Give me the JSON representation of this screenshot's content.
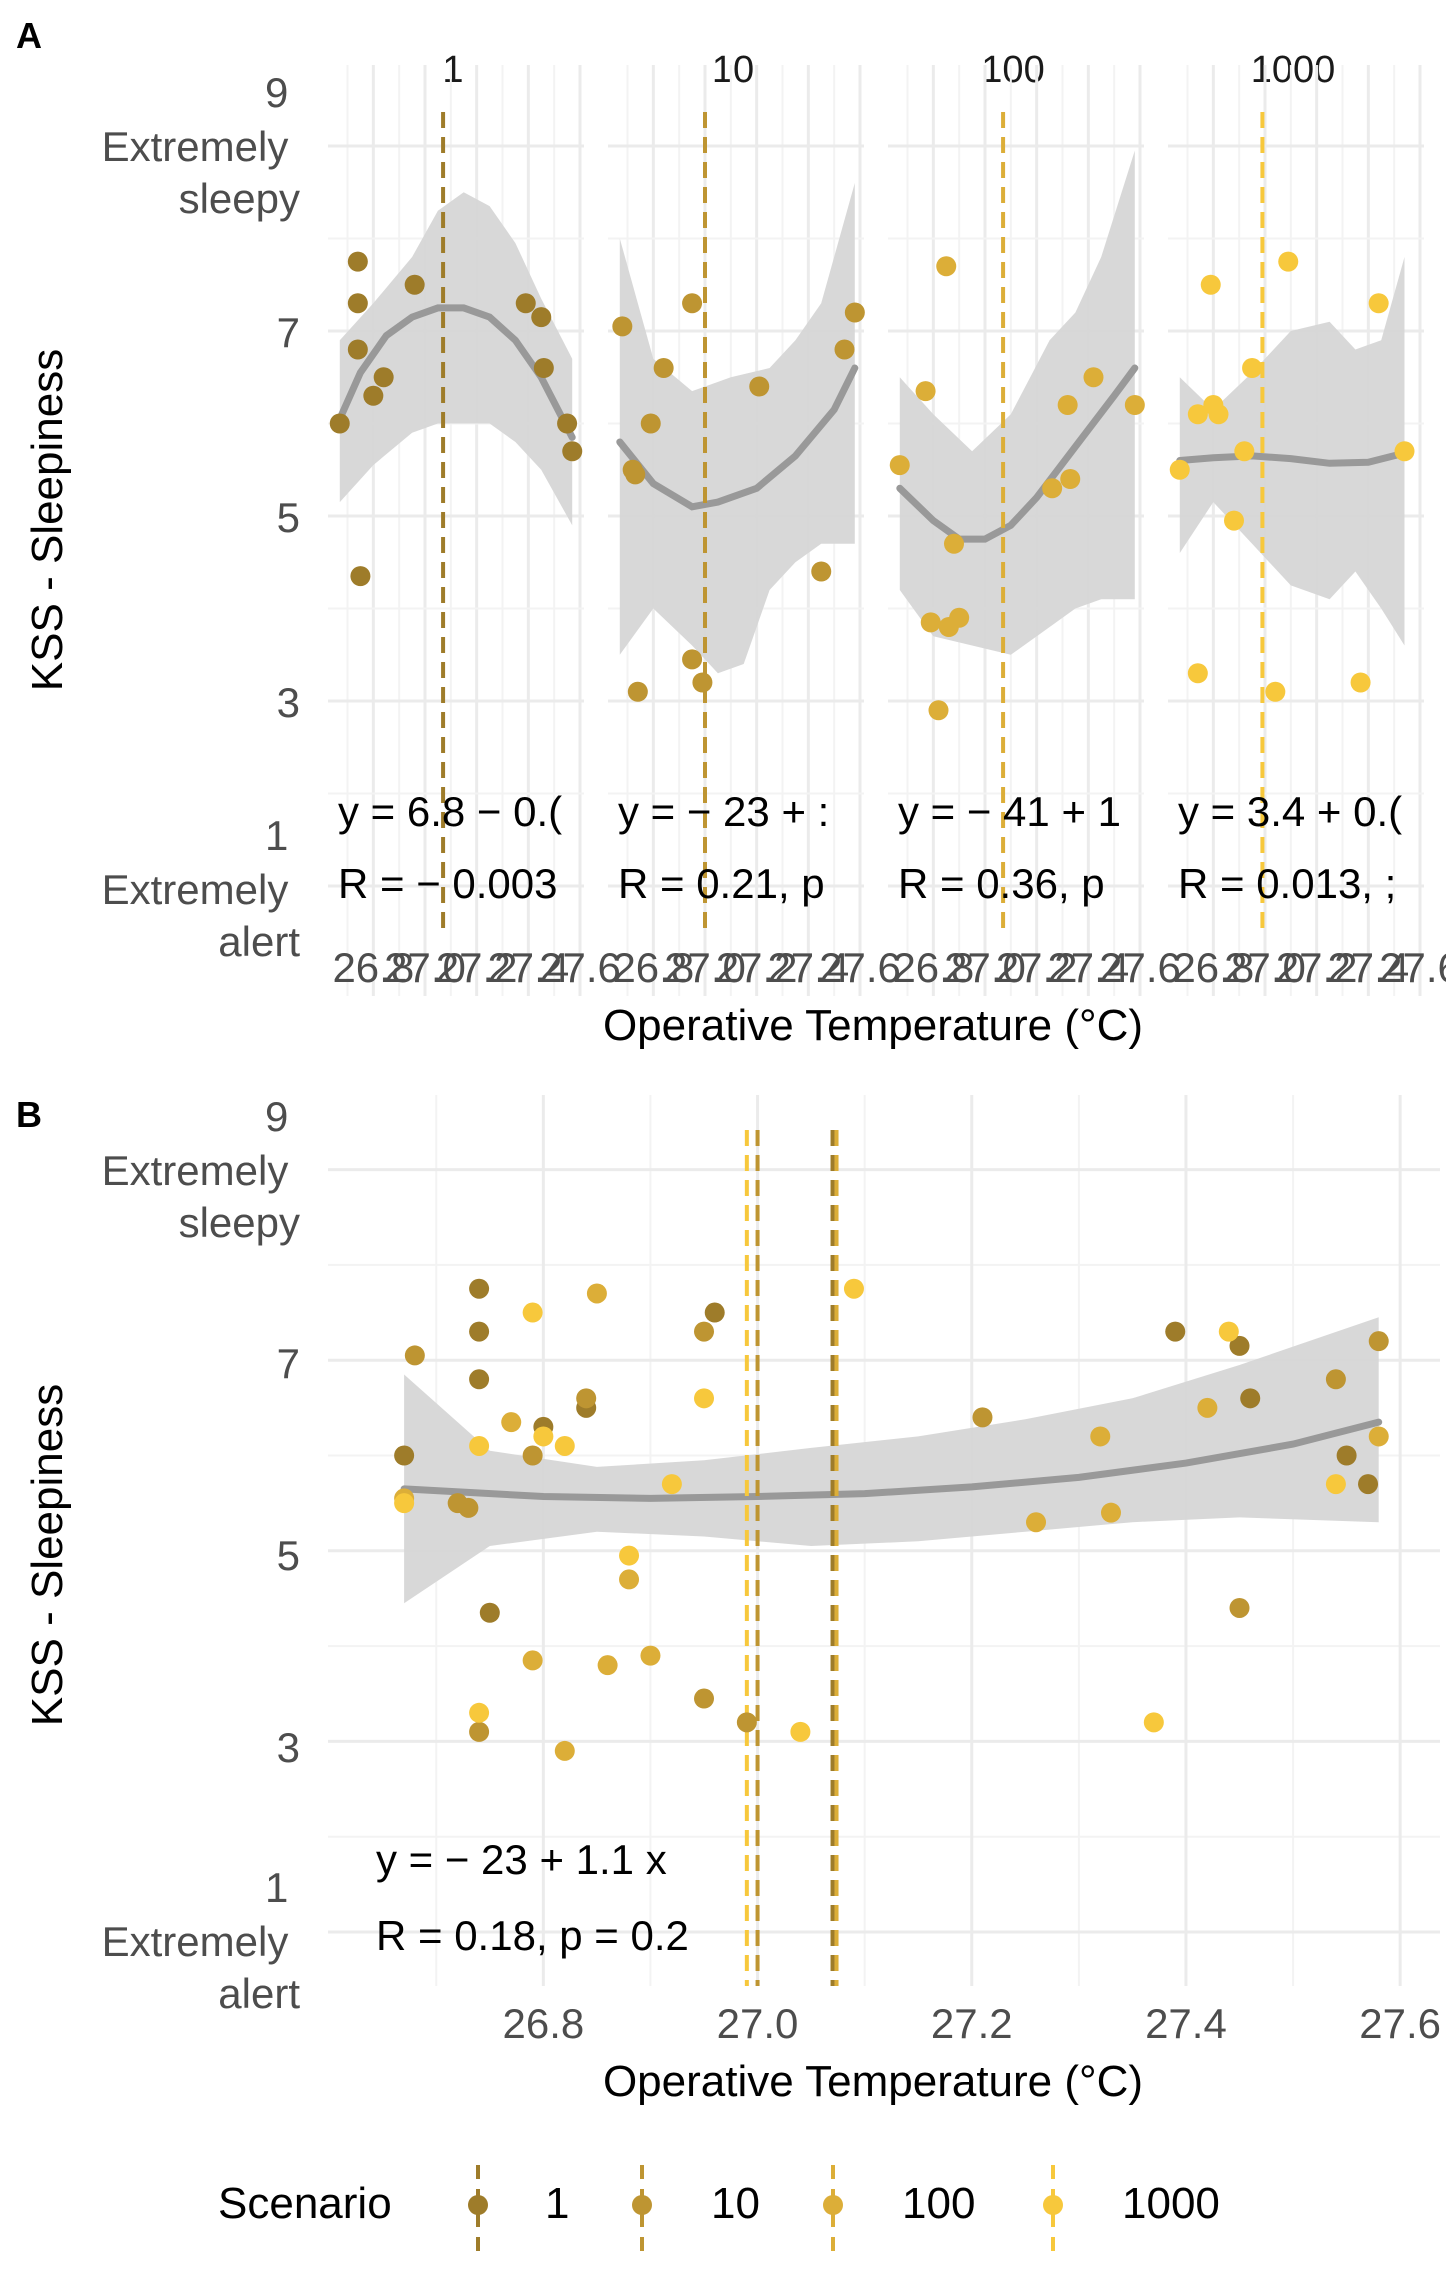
{
  "figure": {
    "panels": [
      "A",
      "B"
    ],
    "ylabel": "KSS - Sleepiness",
    "xlabel": "Operative Temperature (°C)",
    "y_tick_labels": [
      "1\nExtremely\nalert",
      "3",
      "5",
      "7",
      "9\nExtremely\nsleepy"
    ],
    "facet_x_tick_labels": [
      "26.8",
      "27.0",
      "27.2",
      "27.4",
      "27.6"
    ],
    "facet_strip_labels": [
      "1",
      "10",
      "100",
      "1000"
    ],
    "facet_equations": [
      "y = 6.8 − 0.(",
      "y = − 23 + :",
      "y = − 41 + 1",
      "y = 3.4 + 0.("
    ],
    "facet_correlations": [
      "R = − 0.003",
      "R = 0.21, p",
      "R = 0.36, p",
      "R = 0.013, ;"
    ],
    "pooled_equation": "y = − 23 + 1.1 x",
    "pooled_correlation": "R = 0.18, p = 0.2",
    "legend_title": "Scenario",
    "legend_items": [
      "1",
      "10",
      "100",
      "1000"
    ]
  },
  "colors": {
    "1": "#9E7C2A",
    "10": "#BE9532",
    "100": "#DCAE38",
    "1000": "#F7C83C",
    "smooth_line": "#999999",
    "ribbon": "#d6d6d6",
    "grid": "#ebebeb"
  },
  "chart_data": [
    {
      "type": "scatter",
      "panel": "A",
      "facets": [
        "1",
        "10",
        "100",
        "1000"
      ],
      "xlabel": "Operative Temperature (°C)",
      "ylabel": "KSS - Sleepiness",
      "xlim": [
        26.64,
        27.6
      ],
      "ylim": [
        1,
        9
      ],
      "x_ticks": [
        26.8,
        27.0,
        27.2,
        27.4,
        27.6
      ],
      "y_ticks": [
        1,
        3,
        5,
        7,
        9
      ],
      "trend": "loess smooth with confidence ribbon; dashed vertical line at mean temperature per scenario",
      "series": [
        {
          "name": "1",
          "mean_x": 27.07,
          "points": [
            [
              26.67,
              6.0
            ],
            [
              26.74,
              7.75
            ],
            [
              26.74,
              7.3
            ],
            [
              26.74,
              6.8
            ],
            [
              26.75,
              4.35
            ],
            [
              26.8,
              6.3
            ],
            [
              26.84,
              6.5
            ],
            [
              26.96,
              7.5
            ],
            [
              27.39,
              7.3
            ],
            [
              27.45,
              7.15
            ],
            [
              27.46,
              6.6
            ],
            [
              27.55,
              6.0
            ],
            [
              27.57,
              5.7
            ]
          ],
          "smooth": [
            [
              26.67,
              6.05
            ],
            [
              26.75,
              6.55
            ],
            [
              26.85,
              6.95
            ],
            [
              26.95,
              7.15
            ],
            [
              27.05,
              7.25
            ],
            [
              27.15,
              7.25
            ],
            [
              27.25,
              7.15
            ],
            [
              27.35,
              6.9
            ],
            [
              27.45,
              6.5
            ],
            [
              27.57,
              5.85
            ]
          ],
          "ribbon_upper": [
            [
              26.67,
              6.9
            ],
            [
              26.8,
              7.3
            ],
            [
              26.95,
              7.8
            ],
            [
              27.05,
              8.3
            ],
            [
              27.15,
              8.5
            ],
            [
              27.25,
              8.35
            ],
            [
              27.35,
              7.95
            ],
            [
              27.45,
              7.35
            ],
            [
              27.57,
              6.7
            ]
          ],
          "ribbon_lower": [
            [
              26.67,
              5.15
            ],
            [
              26.8,
              5.55
            ],
            [
              26.95,
              5.9
            ],
            [
              27.05,
              6.0
            ],
            [
              27.15,
              6.0
            ],
            [
              27.25,
              6.0
            ],
            [
              27.35,
              5.8
            ],
            [
              27.45,
              5.5
            ],
            [
              27.57,
              4.9
            ]
          ]
        },
        {
          "name": "10",
          "mean_x": 27.0,
          "points": [
            [
              26.68,
              7.05
            ],
            [
              26.72,
              5.5
            ],
            [
              26.73,
              5.45
            ],
            [
              26.74,
              3.1
            ],
            [
              26.79,
              6.0
            ],
            [
              26.84,
              6.6
            ],
            [
              26.95,
              3.45
            ],
            [
              26.95,
              7.3
            ],
            [
              26.99,
              3.2
            ],
            [
              27.21,
              6.4
            ],
            [
              27.45,
              4.4
            ],
            [
              27.54,
              6.8
            ],
            [
              27.58,
              7.2
            ]
          ],
          "smooth": [
            [
              26.67,
              5.8
            ],
            [
              26.8,
              5.35
            ],
            [
              26.95,
              5.1
            ],
            [
              27.05,
              5.15
            ],
            [
              27.2,
              5.3
            ],
            [
              27.35,
              5.65
            ],
            [
              27.5,
              6.15
            ],
            [
              27.58,
              6.6
            ]
          ],
          "ribbon_upper": [
            [
              26.67,
              8.0
            ],
            [
              26.8,
              6.7
            ],
            [
              26.95,
              6.35
            ],
            [
              27.1,
              6.5
            ],
            [
              27.25,
              6.6
            ],
            [
              27.35,
              6.9
            ],
            [
              27.45,
              7.3
            ],
            [
              27.58,
              8.6
            ]
          ],
          "ribbon_lower": [
            [
              26.67,
              3.5
            ],
            [
              26.8,
              4.0
            ],
            [
              26.95,
              3.6
            ],
            [
              27.05,
              3.3
            ],
            [
              27.15,
              3.4
            ],
            [
              27.25,
              4.2
            ],
            [
              27.35,
              4.5
            ],
            [
              27.45,
              4.7
            ],
            [
              27.58,
              4.7
            ]
          ]
        },
        {
          "name": "100",
          "mean_x": 27.07,
          "points": [
            [
              26.67,
              5.55
            ],
            [
              26.77,
              6.35
            ],
            [
              26.79,
              3.85
            ],
            [
              26.82,
              2.9
            ],
            [
              26.85,
              7.7
            ],
            [
              26.86,
              3.8
            ],
            [
              26.88,
              4.7
            ],
            [
              26.9,
              3.9
            ],
            [
              27.26,
              5.3
            ],
            [
              27.32,
              6.2
            ],
            [
              27.33,
              5.4
            ],
            [
              27.42,
              6.5
            ],
            [
              27.58,
              6.2
            ]
          ],
          "smooth": [
            [
              26.67,
              5.3
            ],
            [
              26.8,
              4.95
            ],
            [
              26.9,
              4.75
            ],
            [
              27.0,
              4.75
            ],
            [
              27.1,
              4.9
            ],
            [
              27.2,
              5.2
            ],
            [
              27.35,
              5.75
            ],
            [
              27.5,
              6.3
            ],
            [
              27.58,
              6.6
            ]
          ],
          "ribbon_upper": [
            [
              26.67,
              6.5
            ],
            [
              26.8,
              6.1
            ],
            [
              26.95,
              5.7
            ],
            [
              27.1,
              6.1
            ],
            [
              27.25,
              6.9
            ],
            [
              27.35,
              7.2
            ],
            [
              27.45,
              7.8
            ],
            [
              27.58,
              8.95
            ]
          ],
          "ribbon_lower": [
            [
              26.67,
              4.2
            ],
            [
              26.8,
              3.7
            ],
            [
              26.95,
              3.6
            ],
            [
              27.1,
              3.5
            ],
            [
              27.2,
              3.7
            ],
            [
              27.35,
              4.0
            ],
            [
              27.45,
              4.1
            ],
            [
              27.58,
              4.1
            ]
          ]
        },
        {
          "name": "1000",
          "mean_x": 26.99,
          "points": [
            [
              26.67,
              5.5
            ],
            [
              26.74,
              6.1
            ],
            [
              26.74,
              3.3
            ],
            [
              26.79,
              7.5
            ],
            [
              26.8,
              6.2
            ],
            [
              26.82,
              6.1
            ],
            [
              26.88,
              4.95
            ],
            [
              26.92,
              5.7
            ],
            [
              26.95,
              6.6
            ],
            [
              27.04,
              3.1
            ],
            [
              27.09,
              7.75
            ],
            [
              27.37,
              3.2
            ],
            [
              27.44,
              7.3
            ],
            [
              27.54,
              5.7
            ]
          ],
          "smooth": [
            [
              26.67,
              5.6
            ],
            [
              26.8,
              5.63
            ],
            [
              26.95,
              5.65
            ],
            [
              27.1,
              5.62
            ],
            [
              27.25,
              5.57
            ],
            [
              27.4,
              5.58
            ],
            [
              27.54,
              5.68
            ]
          ],
          "ribbon_upper": [
            [
              26.67,
              6.5
            ],
            [
              26.8,
              6.15
            ],
            [
              26.95,
              6.55
            ],
            [
              27.1,
              7.0
            ],
            [
              27.25,
              7.1
            ],
            [
              27.35,
              6.8
            ],
            [
              27.45,
              6.9
            ],
            [
              27.54,
              7.8
            ]
          ],
          "ribbon_lower": [
            [
              26.67,
              4.6
            ],
            [
              26.8,
              5.15
            ],
            [
              26.95,
              4.7
            ],
            [
              27.1,
              4.25
            ],
            [
              27.25,
              4.1
            ],
            [
              27.35,
              4.4
            ],
            [
              27.45,
              4.0
            ],
            [
              27.54,
              3.6
            ]
          ]
        }
      ]
    },
    {
      "type": "scatter",
      "panel": "B",
      "xlabel": "Operative Temperature (°C)",
      "ylabel": "KSS - Sleepiness",
      "xlim": [
        26.64,
        27.6
      ],
      "ylim": [
        1,
        9
      ],
      "x_ticks": [
        26.8,
        27.0,
        27.2,
        27.4,
        27.6
      ],
      "y_ticks": [
        1,
        3,
        5,
        7,
        9
      ],
      "mean_lines": [
        {
          "series": "1",
          "x": 27.07
        },
        {
          "series": "10",
          "x": 27.0
        },
        {
          "series": "100",
          "x": 27.07
        },
        {
          "series": "1000",
          "x": 26.99
        }
      ],
      "series": [
        {
          "name": "1",
          "points": [
            [
              26.67,
              6.0
            ],
            [
              26.74,
              7.75
            ],
            [
              26.74,
              7.3
            ],
            [
              26.74,
              6.8
            ],
            [
              26.75,
              4.35
            ],
            [
              26.8,
              6.3
            ],
            [
              26.84,
              6.5
            ],
            [
              26.96,
              7.5
            ],
            [
              27.39,
              7.3
            ],
            [
              27.45,
              7.15
            ],
            [
              27.46,
              6.6
            ],
            [
              27.55,
              6.0
            ],
            [
              27.57,
              5.7
            ]
          ]
        },
        {
          "name": "10",
          "points": [
            [
              26.68,
              7.05
            ],
            [
              26.72,
              5.5
            ],
            [
              26.73,
              5.45
            ],
            [
              26.74,
              3.1
            ],
            [
              26.79,
              6.0
            ],
            [
              26.84,
              6.6
            ],
            [
              26.95,
              3.45
            ],
            [
              26.95,
              7.3
            ],
            [
              26.99,
              3.2
            ],
            [
              27.21,
              6.4
            ],
            [
              27.45,
              4.4
            ],
            [
              27.54,
              6.8
            ],
            [
              27.58,
              7.2
            ]
          ]
        },
        {
          "name": "100",
          "points": [
            [
              26.67,
              5.55
            ],
            [
              26.77,
              6.35
            ],
            [
              26.79,
              3.85
            ],
            [
              26.82,
              2.9
            ],
            [
              26.85,
              7.7
            ],
            [
              26.86,
              3.8
            ],
            [
              26.88,
              4.7
            ],
            [
              26.9,
              3.9
            ],
            [
              27.26,
              5.3
            ],
            [
              27.32,
              6.2
            ],
            [
              27.33,
              5.4
            ],
            [
              27.42,
              6.5
            ],
            [
              27.58,
              6.2
            ]
          ]
        },
        {
          "name": "1000",
          "points": [
            [
              26.67,
              5.5
            ],
            [
              26.74,
              6.1
            ],
            [
              26.74,
              3.3
            ],
            [
              26.79,
              7.5
            ],
            [
              26.8,
              6.2
            ],
            [
              26.82,
              6.1
            ],
            [
              26.88,
              4.95
            ],
            [
              26.92,
              5.7
            ],
            [
              26.95,
              6.6
            ],
            [
              27.04,
              3.1
            ],
            [
              27.09,
              7.75
            ],
            [
              27.37,
              3.2
            ],
            [
              27.44,
              7.3
            ],
            [
              27.54,
              5.7
            ]
          ]
        }
      ],
      "smooth": [
        [
          26.67,
          5.65
        ],
        [
          26.8,
          5.57
        ],
        [
          26.9,
          5.55
        ],
        [
          27.0,
          5.57
        ],
        [
          27.1,
          5.6
        ],
        [
          27.2,
          5.67
        ],
        [
          27.3,
          5.77
        ],
        [
          27.4,
          5.92
        ],
        [
          27.5,
          6.12
        ],
        [
          27.58,
          6.35
        ]
      ],
      "ribbon_upper": [
        [
          26.67,
          6.85
        ],
        [
          26.75,
          6.05
        ],
        [
          26.85,
          5.88
        ],
        [
          26.95,
          5.95
        ],
        [
          27.05,
          6.08
        ],
        [
          27.15,
          6.2
        ],
        [
          27.25,
          6.38
        ],
        [
          27.35,
          6.6
        ],
        [
          27.45,
          6.95
        ],
        [
          27.58,
          7.45
        ]
      ],
      "ribbon_lower": [
        [
          26.67,
          4.45
        ],
        [
          26.75,
          5.05
        ],
        [
          26.85,
          5.2
        ],
        [
          26.95,
          5.15
        ],
        [
          27.05,
          5.05
        ],
        [
          27.15,
          5.1
        ],
        [
          27.25,
          5.2
        ],
        [
          27.35,
          5.3
        ],
        [
          27.45,
          5.35
        ],
        [
          27.58,
          5.3
        ]
      ]
    }
  ]
}
